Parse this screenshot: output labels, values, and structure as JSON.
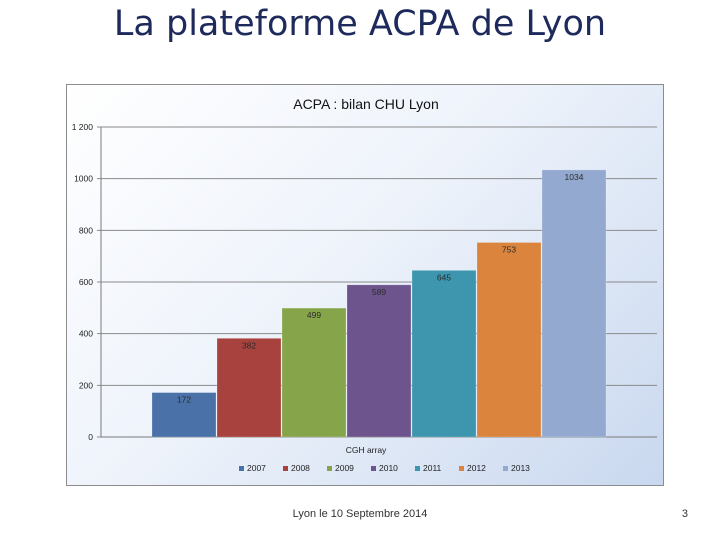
{
  "slide": {
    "title": "La plateforme ACPA de Lyon",
    "footer": "Lyon le 10 Septembre 2014",
    "page_number": "3"
  },
  "chart_data": {
    "type": "bar",
    "title": "ACPA : bilan CHU Lyon",
    "xlabel": "CGH array",
    "ylabel": "",
    "categories": [
      "CGH array"
    ],
    "ylim": [
      0,
      1200
    ],
    "yticks": [
      0,
      200,
      400,
      600,
      800,
      1000,
      1200
    ],
    "ytick_labels": [
      "0",
      "200",
      "400",
      "600",
      "800",
      "1000",
      "1 200"
    ],
    "grid": true,
    "legend_position": "bottom",
    "series": [
      {
        "name": "2007",
        "values": [
          172
        ],
        "color": "#4a72a8"
      },
      {
        "name": "2008",
        "values": [
          382
        ],
        "color": "#a8423f"
      },
      {
        "name": "2009",
        "values": [
          499
        ],
        "color": "#86a44a"
      },
      {
        "name": "2010",
        "values": [
          589
        ],
        "color": "#6e548d"
      },
      {
        "name": "2011",
        "values": [
          645
        ],
        "color": "#3d96ae"
      },
      {
        "name": "2012",
        "values": [
          753
        ],
        "color": "#db843d"
      },
      {
        "name": "2013",
        "values": [
          1034
        ],
        "color": "#93a9cf"
      }
    ]
  }
}
